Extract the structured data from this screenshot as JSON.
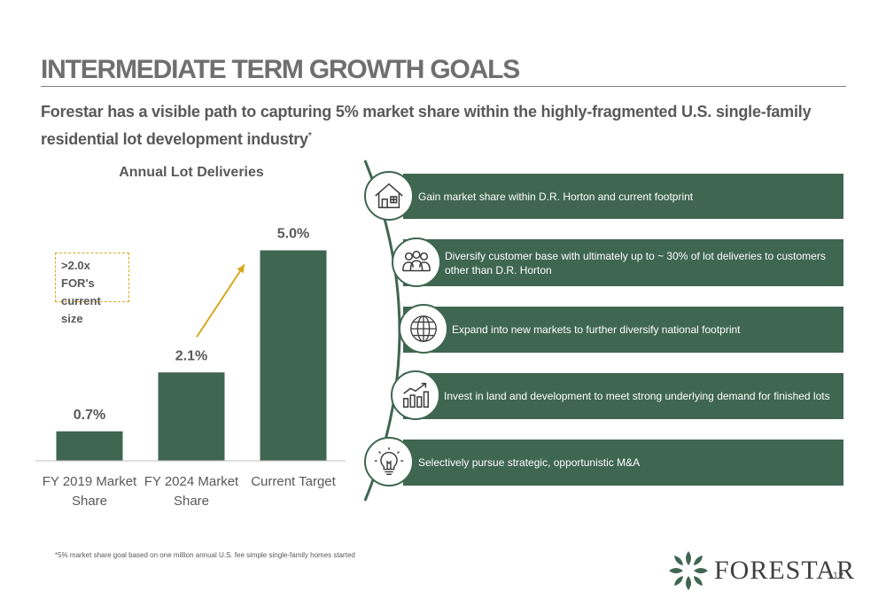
{
  "header": {
    "title": "INTERMEDIATE TERM GROWTH GOALS",
    "subtitle": "Forestar has a visible path to capturing 5% market share within the highly-fragmented U.S. single-family residential lot development industry",
    "subtitle_mark": "*"
  },
  "chart_data": {
    "type": "bar",
    "title": "Annual Lot Deliveries",
    "categories": [
      "FY 2019 Market Share",
      "FY 2024 Market Share",
      "Current Target"
    ],
    "category_lines": [
      [
        "FY 2019 Market",
        "Share"
      ],
      [
        "FY 2024 Market",
        "Share"
      ],
      [
        "Current Target"
      ]
    ],
    "values": [
      0.7,
      2.1,
      5.0
    ],
    "value_labels": [
      "0.7%",
      "2.1%",
      "5.0%"
    ],
    "unit": "%",
    "ylim": [
      0,
      5.6
    ],
    "grid": false,
    "bar_color": "#3f6651",
    "arrow_color": "#d9a71f",
    "callout": {
      "line1": ">2.0x FOR's",
      "line2": "current size"
    }
  },
  "goals": [
    {
      "icon": "house-icon",
      "text": "Gain market share within D.R. Horton and current footprint"
    },
    {
      "icon": "people-icon",
      "text": "Diversify customer base with ultimately up to ~ 30% of lot deliveries to customers other than D.R. Horton"
    },
    {
      "icon": "globe-icon",
      "text": "Expand into new markets to further diversify national footprint"
    },
    {
      "icon": "growth-chart-icon",
      "text": "Invest in land and development to meet strong underlying demand for finished lots"
    },
    {
      "icon": "lightbulb-icon",
      "text": "Selectively pursue strategic, opportunistic M&A"
    }
  ],
  "footer": {
    "footnote": "*5% market share goal based on one million annual U.S. fee simple single-family homes started",
    "logo_text": "FORESTAR",
    "page_number": "12"
  },
  "colors": {
    "accent_green": "#3f6651",
    "gold": "#d9a71f",
    "text_gray": "#595959"
  }
}
